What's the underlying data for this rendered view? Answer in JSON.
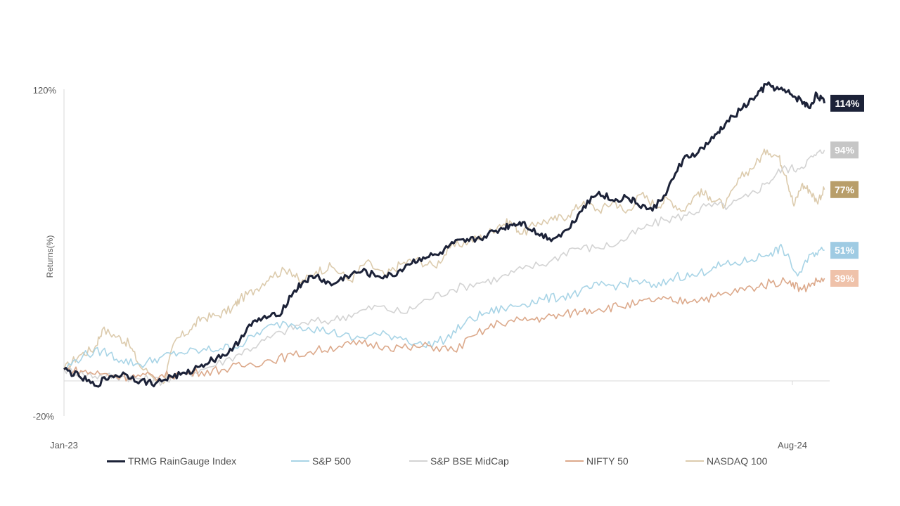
{
  "chart_data": {
    "type": "line",
    "ylabel": "Returns(%)",
    "ylim": [
      -20,
      120
    ],
    "y_ticks": [
      "120%",
      "-20%"
    ],
    "x_ticks": [
      "Jan-23",
      "Aug-24"
    ],
    "x_range": [
      0,
      20
    ],
    "series": [
      {
        "name": "NASDAQ 100",
        "color": "#dccbad",
        "end_label": "77%",
        "end_color": "#b89e6a",
        "x": [
          0,
          0.4,
          0.8,
          1,
          1.4,
          1.7,
          2,
          2.6,
          2.9,
          3.3,
          3.6,
          4,
          4.4,
          4.6,
          5,
          5.4,
          5.9,
          6.2,
          6.6,
          7,
          7.5,
          7.9,
          8.4,
          8.8,
          9.2,
          9.7,
          10.1,
          10.6,
          11,
          11.4,
          11.7,
          12,
          12.4,
          12.8,
          13.2,
          13.6,
          14,
          14.4,
          14.7,
          15.1,
          15.5,
          15.8,
          16.2,
          16.6,
          16.9,
          17.3,
          17.7,
          18.1,
          18.4,
          18.7,
          18.9,
          19.1,
          19.3,
          19.5,
          19.7,
          19.9
        ],
        "values": [
          0,
          6,
          9,
          17,
          14,
          11,
          1,
          -6,
          12,
          17,
          22,
          23,
          26,
          30,
          34,
          40,
          43,
          37,
          42,
          44,
          38,
          46,
          40,
          45,
          47,
          44,
          52,
          55,
          57,
          62,
          63,
          58,
          63,
          64,
          66,
          72,
          68,
          72,
          67,
          75,
          70,
          73,
          68,
          76,
          74,
          70,
          82,
          88,
          94,
          91,
          83,
          70,
          79,
          77,
          72,
          77
        ]
      },
      {
        "name": "S&P BSE MidCap",
        "color": "#d3d3d3",
        "end_label": "94%",
        "end_color": "#c6c6c6",
        "x": [
          0,
          0.5,
          1,
          1.5,
          2,
          2.6,
          3.2,
          3.8,
          4.5,
          5.1,
          5.7,
          6.3,
          7,
          7.6,
          8.2,
          8.9,
          9.5,
          10.1,
          10.8,
          11.4,
          12,
          12.7,
          13.3,
          13.9,
          14.5,
          15.1,
          15.7,
          16.3,
          16.8,
          17.4,
          17.9,
          18.4,
          18.8,
          19.2,
          19.6,
          19.9
        ],
        "values": [
          0,
          -2,
          -3,
          -3,
          -4,
          -5,
          -2,
          1,
          6,
          11,
          16,
          20,
          21,
          24,
          27,
          24,
          30,
          34,
          37,
          39,
          43,
          46,
          52,
          52,
          54,
          60,
          64,
          66,
          70,
          70,
          74,
          80,
          86,
          86,
          91,
          94
        ]
      },
      {
        "name": "S&P 500",
        "color": "#a8d4e6",
        "end_label": "51%",
        "end_color": "#9fcbe3",
        "x": [
          0,
          0.5,
          1,
          1.5,
          2,
          2.5,
          3,
          3.6,
          4.1,
          4.6,
          5.2,
          5.8,
          6.4,
          7,
          7.6,
          8.2,
          8.8,
          9.4,
          10,
          10.5,
          11,
          11.5,
          12,
          12.5,
          13,
          13.5,
          14,
          14.5,
          15,
          15.5,
          16,
          16.5,
          17,
          17.5,
          18,
          18.5,
          18.8,
          19.2,
          19.6,
          19.9
        ],
        "values": [
          0,
          6,
          8,
          4,
          2,
          5,
          7,
          8,
          9,
          10,
          17,
          20,
          18,
          16,
          13,
          15,
          14,
          10,
          13,
          20,
          24,
          26,
          28,
          30,
          31,
          33,
          36,
          36,
          38,
          35,
          40,
          40,
          44,
          45,
          47,
          50,
          52,
          40,
          50,
          51
        ]
      },
      {
        "name": "NIFTY 50",
        "color": "#dca98b",
        "end_label": "39%",
        "end_color": "#efc2aa",
        "x": [
          0,
          0.5,
          1,
          1.5,
          2,
          2.5,
          3,
          3.6,
          4.2,
          4.8,
          5.4,
          6,
          6.6,
          7.2,
          7.8,
          8.4,
          9,
          9.6,
          10.2,
          10.8,
          11.4,
          12,
          12.5,
          13,
          13.5,
          14,
          14.5,
          15,
          15.5,
          16,
          16.5,
          17,
          17.5,
          18,
          18.5,
          19,
          19.3,
          19.6,
          19.9
        ],
        "values": [
          0,
          -1,
          -2,
          -3,
          -3,
          -3,
          -2,
          -1,
          0,
          2,
          4,
          6,
          8,
          10,
          11,
          10,
          9,
          10,
          8,
          15,
          20,
          21,
          22,
          23,
          25,
          26,
          27,
          28,
          30,
          29,
          30,
          31,
          33,
          35,
          37,
          38,
          34,
          37,
          39
        ]
      },
      {
        "name": "TRMG RainGauge Index",
        "color": "#1c2238",
        "end_label": "114%",
        "end_color": "#1c2238",
        "x": [
          0,
          0.4,
          0.8,
          1.2,
          1.6,
          2,
          2.4,
          2.8,
          3.2,
          3.6,
          4,
          4.4,
          4.8,
          5.2,
          5.6,
          6,
          6.3,
          6.6,
          7,
          7.4,
          7.8,
          8.2,
          8.6,
          9,
          9.4,
          9.8,
          10.2,
          10.6,
          11,
          11.4,
          11.7,
          12,
          12.4,
          12.8,
          13.2,
          13.6,
          14,
          14.4,
          14.7,
          15,
          15.4,
          15.8,
          16.2,
          16.6,
          17,
          17.3,
          17.7,
          18.1,
          18.4,
          18.7,
          19,
          19.3,
          19.5,
          19.7,
          19.9
        ],
        "values": [
          0,
          -3,
          -7,
          -3,
          -2,
          -5,
          -6,
          -3,
          -2,
          2,
          5,
          8,
          18,
          22,
          23,
          33,
          38,
          40,
          36,
          40,
          42,
          40,
          40,
          45,
          48,
          49,
          54,
          55,
          57,
          60,
          62,
          63,
          58,
          56,
          60,
          70,
          76,
          72,
          74,
          71,
          68,
          77,
          90,
          93,
          99,
          105,
          111,
          117,
          122,
          120,
          118,
          115,
          112,
          118,
          114
        ]
      }
    ],
    "legend": [
      {
        "name": "TRMG RainGauge Index",
        "color": "#1c2238"
      },
      {
        "name": "S&P 500",
        "color": "#a8d4e6"
      },
      {
        "name": "S&P BSE MidCap",
        "color": "#d3d3d3"
      },
      {
        "name": "NIFTY 50",
        "color": "#dca98b"
      },
      {
        "name": "NASDAQ 100",
        "color": "#dccbad"
      }
    ]
  }
}
